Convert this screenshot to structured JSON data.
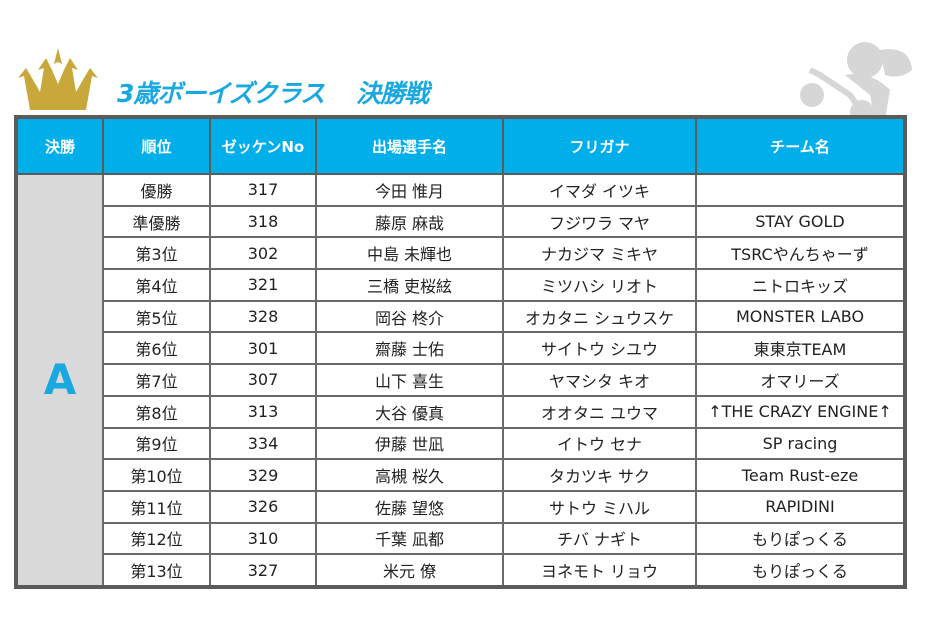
{
  "title": {
    "class_name": "3歳ボーイズクラス",
    "stage": "決勝戦"
  },
  "colors": {
    "accent": "#00aeea",
    "crown": "#c8a83a",
    "border": "#5b5b5b",
    "class_cell": "#d9d9d9"
  },
  "headers": [
    "決勝",
    "順位",
    "ゼッケンNo",
    "出場選手名",
    "フリガナ",
    "チーム名"
  ],
  "group": "A",
  "rows": [
    {
      "rank": "優勝",
      "no": "317",
      "name": "今田 惟月",
      "kana": "イマダ イツキ",
      "team": ""
    },
    {
      "rank": "準優勝",
      "no": "318",
      "name": "藤原 麻哉",
      "kana": "フジワラ マヤ",
      "team": "STAY GOLD"
    },
    {
      "rank": "第3位",
      "no": "302",
      "name": "中島 未輝也",
      "kana": "ナカジマ ミキヤ",
      "team": "TSRCやんちゃーず"
    },
    {
      "rank": "第4位",
      "no": "321",
      "name": "三橋 吏桜絃",
      "kana": "ミツハシ リオト",
      "team": "ニトロキッズ"
    },
    {
      "rank": "第5位",
      "no": "328",
      "name": "岡谷 柊介",
      "kana": "オカタニ シュウスケ",
      "team": "MONSTER LABO"
    },
    {
      "rank": "第6位",
      "no": "301",
      "name": "齋藤 士佑",
      "kana": "サイトウ シユウ",
      "team": "東東京TEAM"
    },
    {
      "rank": "第7位",
      "no": "307",
      "name": "山下 喜生",
      "kana": "ヤマシタ キオ",
      "team": "オマリーズ"
    },
    {
      "rank": "第8位",
      "no": "313",
      "name": "大谷 優真",
      "kana": "オオタニ ユウマ",
      "team": "↑THE CRAZY ENGINE↑"
    },
    {
      "rank": "第9位",
      "no": "334",
      "name": "伊藤 世凪",
      "kana": "イトウ セナ",
      "team": "SP racing"
    },
    {
      "rank": "第10位",
      "no": "329",
      "name": "高槻 桜久",
      "kana": "タカツキ サク",
      "team": "Team Rust-eze"
    },
    {
      "rank": "第11位",
      "no": "326",
      "name": "佐藤 望悠",
      "kana": "サトウ ミハル",
      "team": "RAPIDINI"
    },
    {
      "rank": "第12位",
      "no": "310",
      "name": "千葉 凪都",
      "kana": "チバ ナギト",
      "team": "もりぽっくる"
    },
    {
      "rank": "第13位",
      "no": "327",
      "name": "米元 僚",
      "kana": "ヨネモト リョウ",
      "team": "もりぽっくる"
    }
  ]
}
